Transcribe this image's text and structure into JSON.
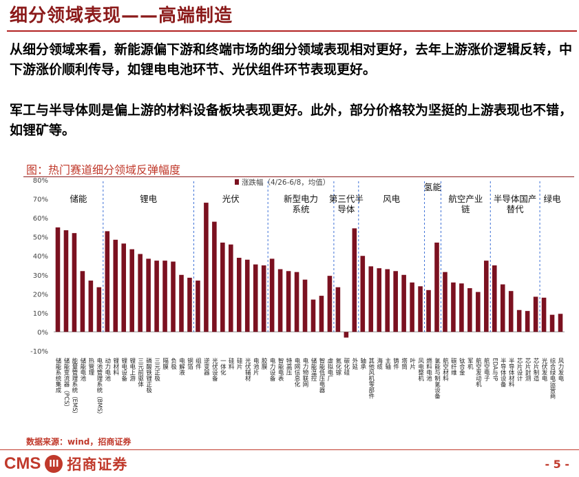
{
  "header": {
    "title": "细分领域表现——高端制造"
  },
  "body": {
    "para1": "从细分领域来看，新能源偏下游和终端市场的细分领域表现相对更好，去年上游涨价逻辑反转，中下游涨价顺利传导，如锂电电池环节、光伏组件环节表现更好。",
    "para2": "军工与半导体则是偏上游的材料设备板块表现更好。此外，部分价格较为坚挺的上游表现也不错，如锂矿等。"
  },
  "figure": {
    "title": "图：热门赛道细分领域反弹幅度",
    "source": "数据来源：wind，招商证券"
  },
  "footer": {
    "logo_text": "CMS",
    "logo_badge": "III",
    "logo_cn": "招商证券",
    "page": "- 5 -"
  },
  "colors": {
    "bar": "#7b1120",
    "accent": "#c0392b",
    "divider": "#3b6fd6"
  },
  "chart_data": {
    "type": "bar",
    "legend": "涨跌幅（4/26-6/8，均值）",
    "ylim": [
      -0.1,
      0.8
    ],
    "yticks": [
      "-10%",
      "0%",
      "10%",
      "20%",
      "30%",
      "40%",
      "50%",
      "60%",
      "70%",
      "80%"
    ],
    "groups": [
      {
        "name": "储能",
        "start": 0,
        "end": 5
      },
      {
        "name": "锂电",
        "start": 6,
        "end": 16
      },
      {
        "name": "光伏",
        "start": 17,
        "end": 25
      },
      {
        "name": "新型电力系统",
        "start": 26,
        "end": 33
      },
      {
        "name": "第三代半导体",
        "start": 34,
        "end": 36
      },
      {
        "name": "风电",
        "start": 37,
        "end": 44
      },
      {
        "name": "氢能",
        "start": 45,
        "end": 46
      },
      {
        "name": "航空产业链",
        "start": 47,
        "end": 52
      },
      {
        "name": "半导体国产替代",
        "start": 53,
        "end": 58
      },
      {
        "name": "绿电",
        "start": 59,
        "end": 61
      }
    ],
    "categories": [
      "储能系统集成",
      "储能变流器（PCS）",
      "能量管理系统（EMS）",
      "储能电池",
      "热管理",
      "电池管理系统（BMS）",
      "动力电池",
      "锂材料",
      "锂电设备",
      "锂电上游",
      "三元前驱体",
      "磷酸铁锂正极",
      "三元正极",
      "隔膜",
      "负极",
      "电解液",
      "铜箔",
      "组件",
      "逆变器",
      "光伏设备",
      "一体化",
      "硅料",
      "硅片",
      "光伏辅材",
      "电池片",
      "胶膜",
      "电力设备",
      "智能电表",
      "特高压",
      "电网信息化",
      "电力物联网",
      "储能温控",
      "智能低压电器",
      "虚拟电厂",
      "氮化镓",
      "碳化硅",
      "外延",
      "轴承",
      "其他风机零部件",
      "海缆",
      "主轴",
      "铸件",
      "塔筒",
      "叶片",
      "风电整机",
      "燃料电池",
      "氢能与制氢设备",
      "航空材料",
      "碳纤维",
      "钛合金",
      "军机",
      "航空发动机",
      "航空电子",
      "EDA与IP",
      "半导体设备",
      "半导体材料",
      "芯片设计",
      "芯片封测",
      "芯片制造",
      "光伏发电",
      "综合绿电运营商",
      "风力发电"
    ],
    "values": [
      0.55,
      0.535,
      0.52,
      0.32,
      0.27,
      0.235,
      0.53,
      0.485,
      0.465,
      0.435,
      0.41,
      0.385,
      0.375,
      0.375,
      0.37,
      0.3,
      0.285,
      0.27,
      0.68,
      0.58,
      0.47,
      0.46,
      0.39,
      0.38,
      0.355,
      0.35,
      0.385,
      0.33,
      0.32,
      0.315,
      0.275,
      0.17,
      0.19,
      0.295,
      0.235,
      -0.03,
      0.545,
      0.4,
      0.345,
      0.335,
      0.33,
      0.32,
      0.3,
      0.26,
      0.24,
      0.22,
      0.47,
      0.315,
      0.26,
      0.255,
      0.23,
      0.21,
      0.375,
      0.35,
      0.25,
      0.215,
      0.115,
      0.11,
      0.185,
      0.18,
      0.09,
      0.095
    ]
  }
}
